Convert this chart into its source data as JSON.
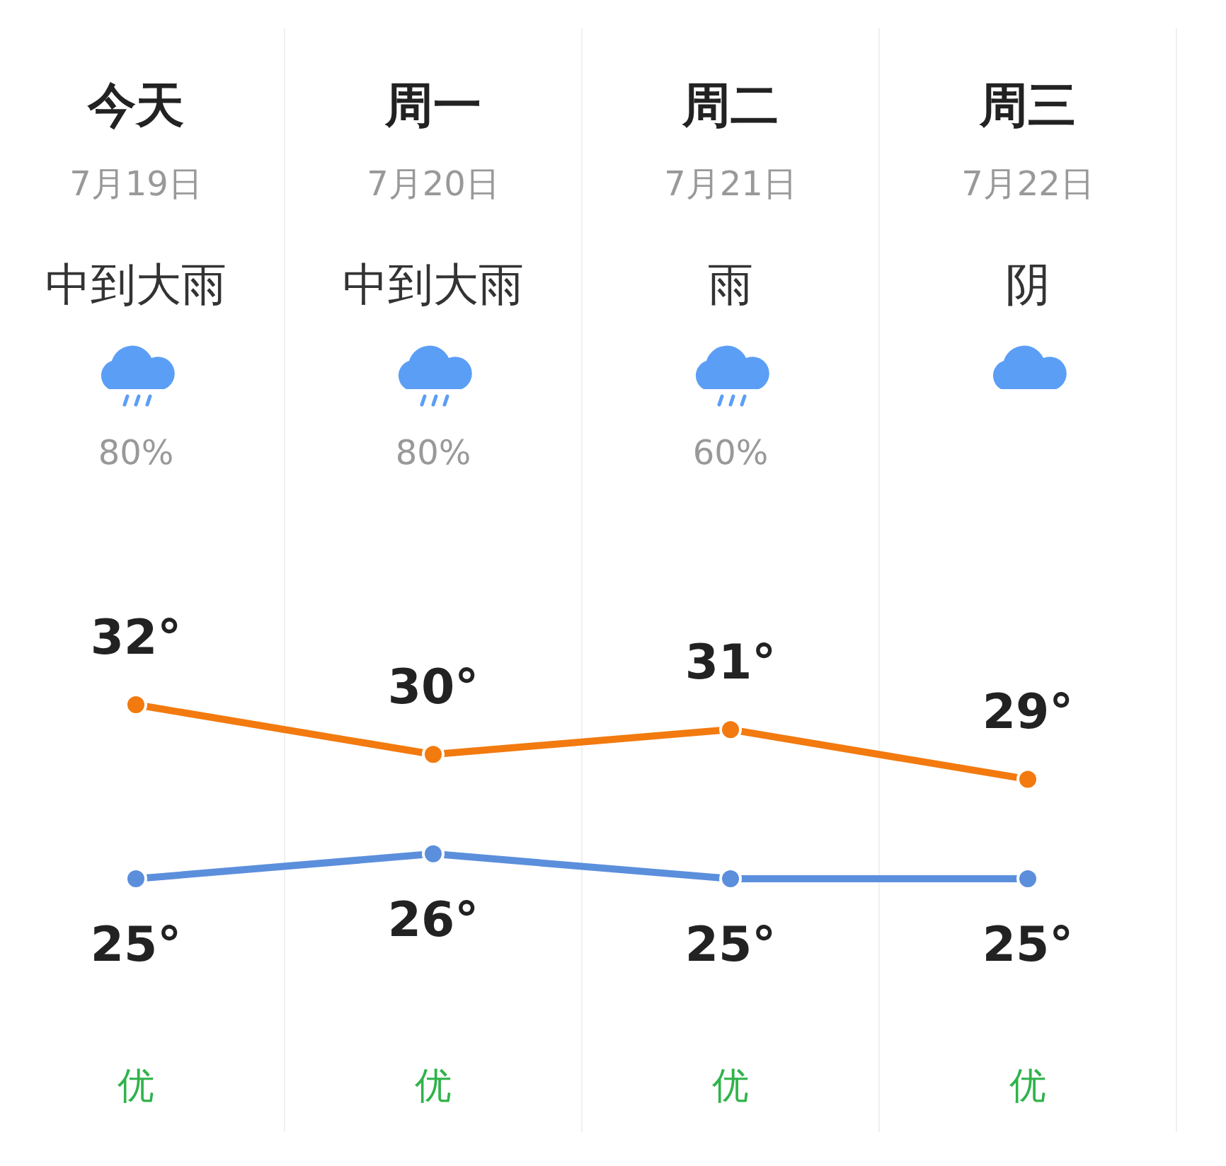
{
  "chart_data": {
    "type": "line",
    "categories": [
      "今天",
      "周一",
      "周二",
      "周三"
    ],
    "series": [
      {
        "color": "#f27a0f",
        "values": [
          32,
          30,
          31,
          29
        ],
        "value_labels": [
          "32°",
          "30°",
          "31°",
          "29°"
        ]
      },
      {
        "color": "#5b8fdc",
        "values": [
          25,
          26,
          25,
          25
        ],
        "value_labels": [
          "25°",
          "26°",
          "25°",
          "25°"
        ]
      }
    ],
    "marker": "circle",
    "annotations": [
      "7月19日",
      "7月20日",
      "7月21日",
      "7月22日",
      "中到大雨",
      "中到大雨",
      "雨",
      "阴",
      "80%",
      "80%",
      "60%",
      "优",
      "优",
      "优",
      "优"
    ]
  }
}
